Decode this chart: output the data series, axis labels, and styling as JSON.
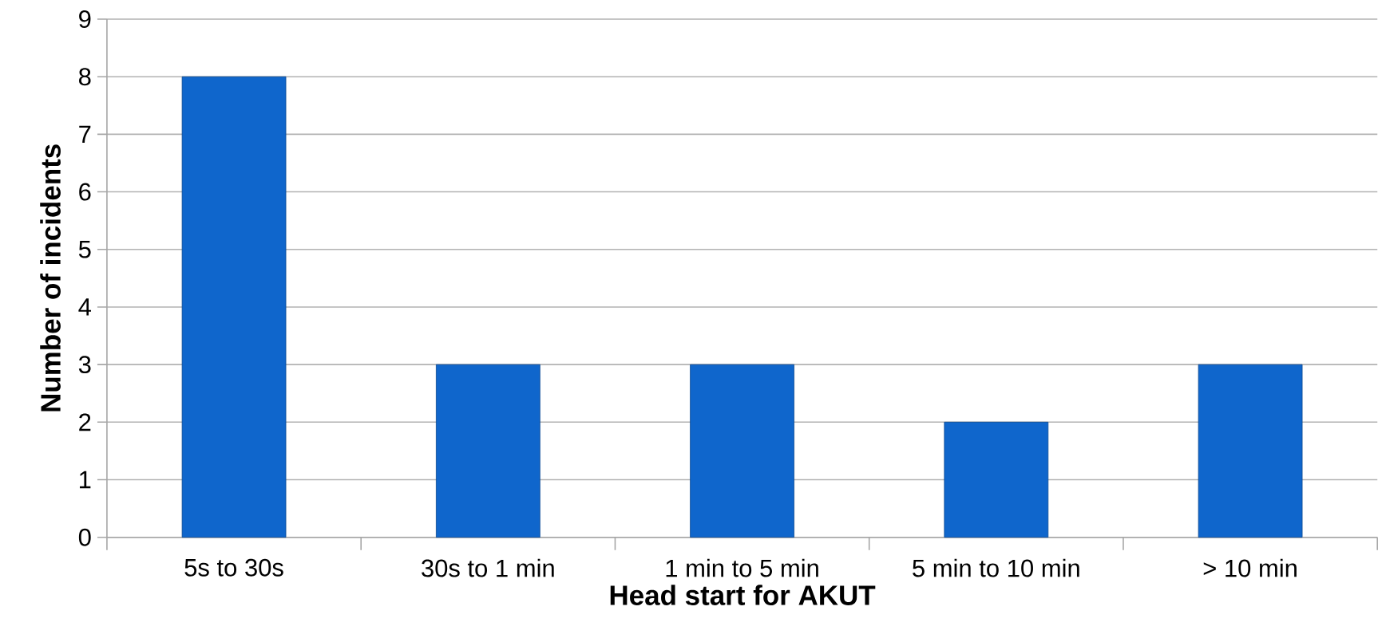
{
  "chart_data": {
    "type": "bar",
    "xlabel": "Head start for AKUT",
    "ylabel": "Number of incidents",
    "categories": [
      "5s to 30s",
      "30s to 1 min",
      "1 min to 5 min",
      "5 min to 10 min",
      "> 10 min"
    ],
    "values": [
      8,
      3,
      3,
      2,
      3
    ],
    "color": "#0f66cc",
    "ylim": [
      0,
      9
    ],
    "yticks": [
      0,
      1,
      2,
      3,
      4,
      5,
      6,
      7,
      8,
      9
    ],
    "grid": "y"
  }
}
